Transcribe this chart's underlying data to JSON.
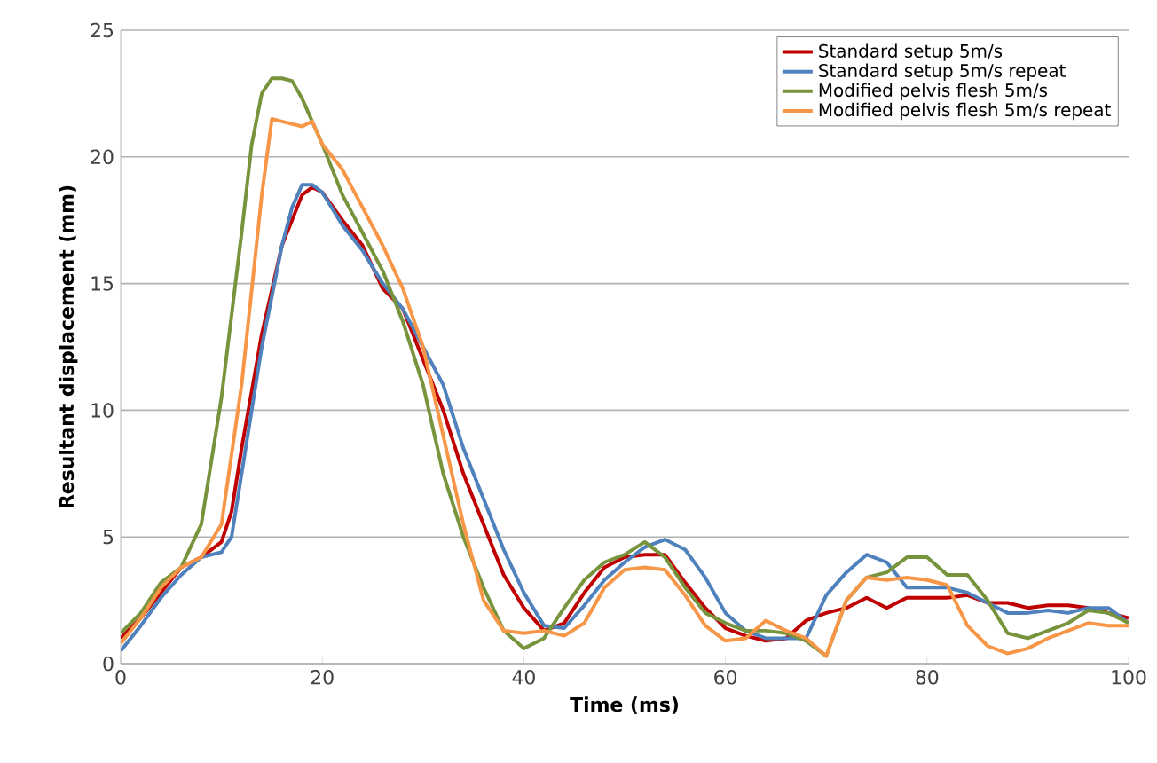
{
  "chart_data": {
    "type": "line",
    "xlabel": "Time (ms)",
    "ylabel": "Resultant displacement (mm)",
    "xlim": [
      0,
      100
    ],
    "ylim": [
      0,
      25
    ],
    "xticks": [
      0,
      20,
      40,
      60,
      80,
      100
    ],
    "yticks": [
      0,
      5,
      10,
      15,
      20,
      25
    ],
    "grid": "y",
    "legend": "top right",
    "marker": "none",
    "line_style": "solid",
    "series": [
      {
        "name": "Standard setup 5m/s",
        "color": "#c00000",
        "x": [
          0,
          2,
          4,
          6,
          8,
          10,
          11,
          12,
          14,
          16,
          18,
          19,
          20,
          22,
          24,
          26,
          28,
          30,
          32,
          34,
          36,
          38,
          40,
          42,
          44,
          46,
          48,
          50,
          52,
          54,
          56,
          58,
          60,
          62,
          64,
          66,
          68,
          70,
          72,
          74,
          76,
          78,
          80,
          82,
          84,
          86,
          88,
          90,
          92,
          94,
          96,
          98,
          100
        ],
        "values": [
          1.0,
          1.8,
          2.8,
          3.8,
          4.2,
          4.8,
          6,
          8.5,
          13,
          16.5,
          18.5,
          18.8,
          18.6,
          17.5,
          16.5,
          14.8,
          14,
          12,
          10,
          7.5,
          5.5,
          3.5,
          2.2,
          1.3,
          1.6,
          2.8,
          3.8,
          4.2,
          4.3,
          4.3,
          3.2,
          2.2,
          1.4,
          1.1,
          0.9,
          1.0,
          1.7,
          2.0,
          2.2,
          2.6,
          2.2,
          2.6,
          2.6,
          2.6,
          2.7,
          2.4,
          2.4,
          2.2,
          2.3,
          2.3,
          2.2,
          2.0,
          1.8
        ]
      },
      {
        "name": "Standard setup 5m/s repeat",
        "color": "#4f81bd",
        "x": [
          0,
          2,
          4,
          6,
          8,
          10,
          11,
          12,
          14,
          16,
          17,
          18,
          19,
          20,
          22,
          24,
          26,
          28,
          30,
          32,
          34,
          36,
          38,
          40,
          42,
          44,
          46,
          48,
          50,
          52,
          54,
          56,
          58,
          60,
          62,
          64,
          66,
          68,
          70,
          72,
          74,
          76,
          78,
          80,
          82,
          84,
          86,
          88,
          90,
          92,
          94,
          96,
          98,
          100
        ],
        "values": [
          0.5,
          1.5,
          2.6,
          3.5,
          4.2,
          4.4,
          5,
          7.5,
          12.5,
          16.5,
          18,
          18.9,
          18.9,
          18.6,
          17.3,
          16.3,
          15,
          14,
          12.5,
          11,
          8.5,
          6.5,
          4.5,
          2.8,
          1.5,
          1.4,
          2.3,
          3.3,
          4.0,
          4.6,
          4.9,
          4.5,
          3.4,
          2.0,
          1.3,
          1.0,
          1.0,
          1.0,
          2.7,
          3.6,
          4.3,
          4.0,
          3.0,
          3.0,
          3.0,
          2.8,
          2.4,
          2.0,
          2.0,
          2.1,
          2.0,
          2.2,
          2.2,
          1.6
        ]
      },
      {
        "name": "Modified pelvis flesh 5m/s",
        "color": "#77933c",
        "x": [
          0,
          2,
          4,
          6,
          8,
          10,
          12,
          13,
          14,
          15,
          16,
          17,
          18,
          20,
          22,
          24,
          26,
          28,
          30,
          32,
          34,
          36,
          38,
          40,
          42,
          44,
          46,
          48,
          50,
          52,
          54,
          56,
          58,
          60,
          62,
          64,
          66,
          68,
          70,
          72,
          74,
          76,
          78,
          80,
          82,
          84,
          86,
          88,
          90,
          92,
          94,
          96,
          98,
          100
        ],
        "values": [
          1.2,
          2.0,
          3.2,
          3.8,
          5.5,
          10.5,
          17,
          20.5,
          22.5,
          23.1,
          23.1,
          23,
          22.3,
          20.5,
          18.5,
          17,
          15.5,
          13.5,
          11,
          7.5,
          5,
          3.0,
          1.3,
          0.6,
          1.0,
          2.2,
          3.3,
          4.0,
          4.3,
          4.8,
          4.2,
          3.0,
          2.0,
          1.6,
          1.3,
          1.3,
          1.2,
          0.9,
          0.3,
          2.5,
          3.4,
          3.6,
          4.2,
          4.2,
          3.5,
          3.5,
          2.5,
          1.2,
          1.0,
          1.3,
          1.6,
          2.1,
          2.0,
          1.6
        ]
      },
      {
        "name": "Modified pelvis flesh 5m/s repeat",
        "color": "#f79646",
        "x": [
          0,
          2,
          4,
          6,
          8,
          10,
          12,
          14,
          15,
          16,
          18,
          19,
          20,
          22,
          24,
          26,
          28,
          30,
          32,
          34,
          36,
          38,
          40,
          42,
          44,
          46,
          48,
          50,
          52,
          54,
          56,
          58,
          60,
          62,
          64,
          66,
          68,
          70,
          72,
          74,
          76,
          78,
          80,
          82,
          84,
          86,
          88,
          90,
          92,
          94,
          96,
          98,
          100
        ],
        "values": [
          0.8,
          1.8,
          3.0,
          3.8,
          4.2,
          5.5,
          11,
          18.5,
          21.5,
          21.4,
          21.2,
          21.4,
          20.5,
          19.5,
          18.0,
          16.5,
          14.8,
          12.5,
          9,
          5.5,
          2.5,
          1.3,
          1.2,
          1.3,
          1.1,
          1.6,
          3.0,
          3.7,
          3.8,
          3.7,
          2.7,
          1.5,
          0.9,
          1.0,
          1.7,
          1.3,
          1.0,
          0.3,
          2.5,
          3.4,
          3.3,
          3.4,
          3.3,
          3.1,
          1.5,
          0.7,
          0.4,
          0.6,
          1.0,
          1.3,
          1.6,
          1.5,
          1.5
        ]
      }
    ]
  }
}
